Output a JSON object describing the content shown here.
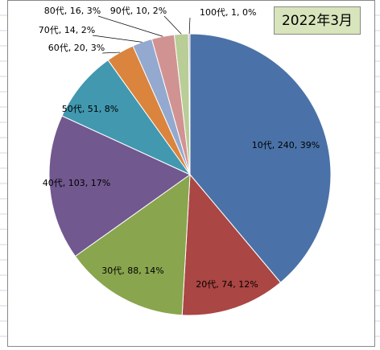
{
  "chart_data": {
    "type": "pie",
    "title": "2022年3月",
    "values": [
      240,
      74,
      88,
      103,
      51,
      20,
      14,
      16,
      10,
      1
    ],
    "value_labels": [
      "10代, 240, 39%",
      "20代, 74, 12%",
      "30代, 88, 14%",
      "40代, 103, 17%",
      "50代, 51, 8%",
      "60代, 20, 3%",
      "70代, 14, 2%",
      "80代, 16, 3%",
      "90代, 10, 2%",
      "100代, 1, 0%"
    ],
    "colors": [
      "#4a72a8",
      "#aa4643",
      "#89a54e",
      "#71588f",
      "#4198af",
      "#db843d",
      "#93a9cf",
      "#d19392",
      "#b9cd96",
      "#a99bbd"
    ]
  }
}
